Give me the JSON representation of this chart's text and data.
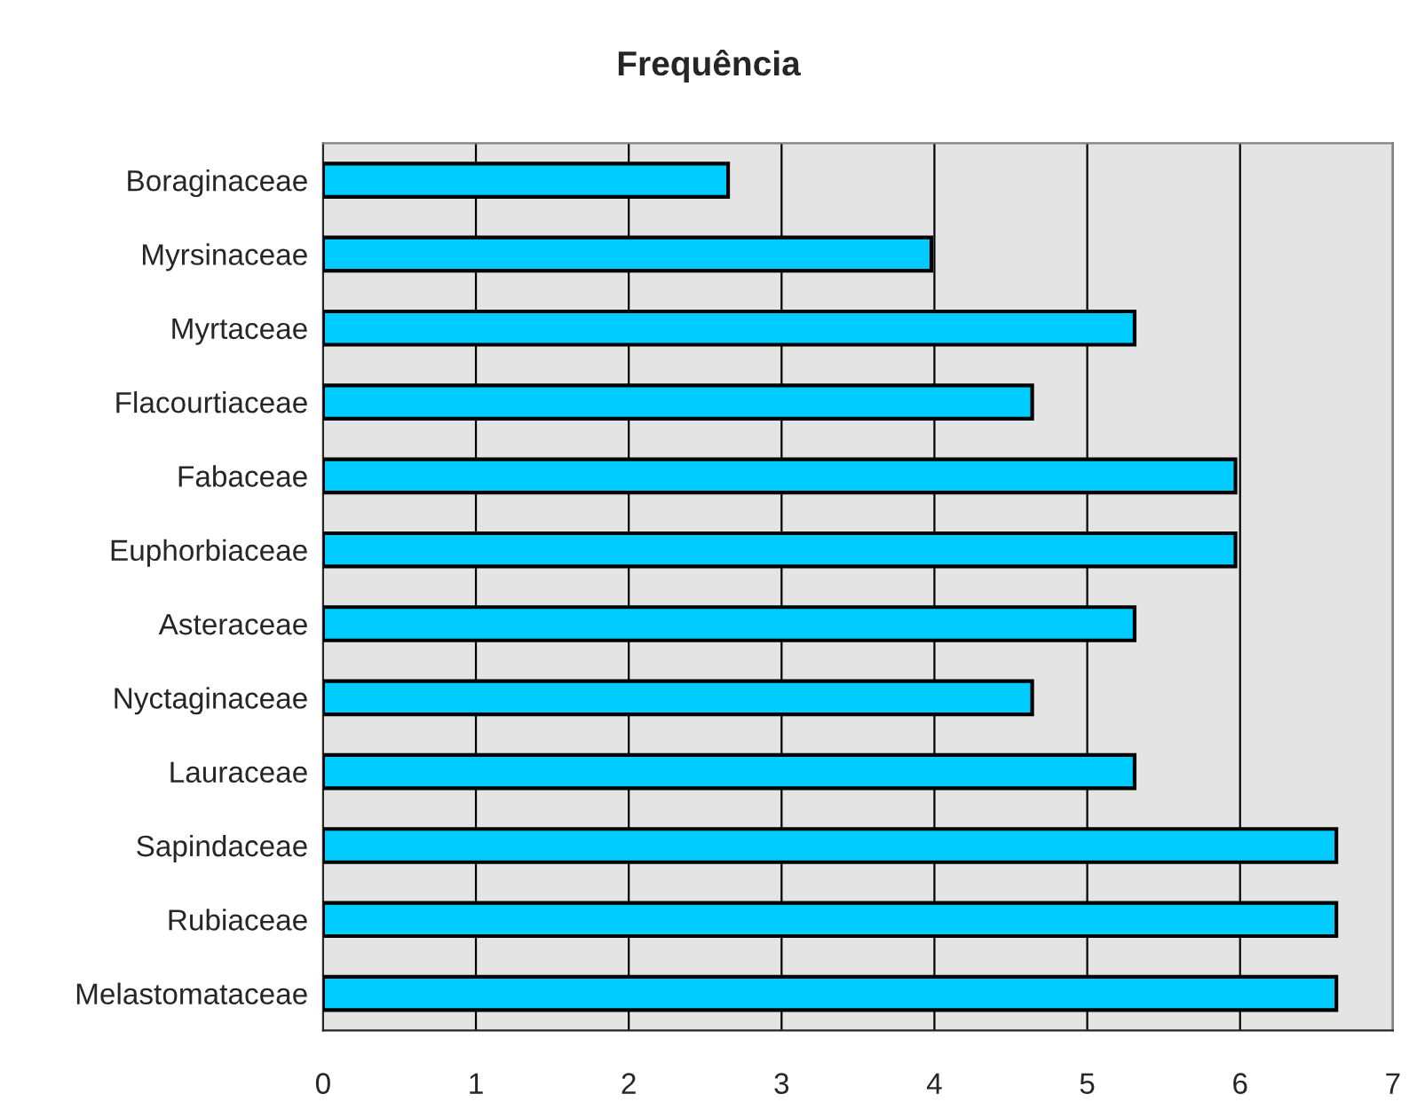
{
  "chart_data": {
    "type": "bar",
    "orientation": "horizontal",
    "title": "Frequência",
    "categories": [
      "Boraginaceae",
      "Myrsinaceae",
      "Myrtaceae",
      "Flacourtiaceae",
      "Fabaceae",
      "Euphorbiaceae",
      "Asteraceae",
      "Nyctaginaceae",
      "Lauraceae",
      "Sapindaceae",
      "Rubiaceae",
      "Melastomataceae"
    ],
    "values": [
      2.65,
      3.98,
      5.31,
      4.64,
      5.97,
      5.97,
      5.31,
      4.64,
      5.31,
      6.63,
      6.63,
      6.63
    ],
    "color": "#00ccff",
    "xlim": [
      0,
      7
    ],
    "xticks": [
      0,
      1,
      2,
      3,
      4,
      5,
      6,
      7
    ],
    "grid": "x",
    "legend": false
  }
}
